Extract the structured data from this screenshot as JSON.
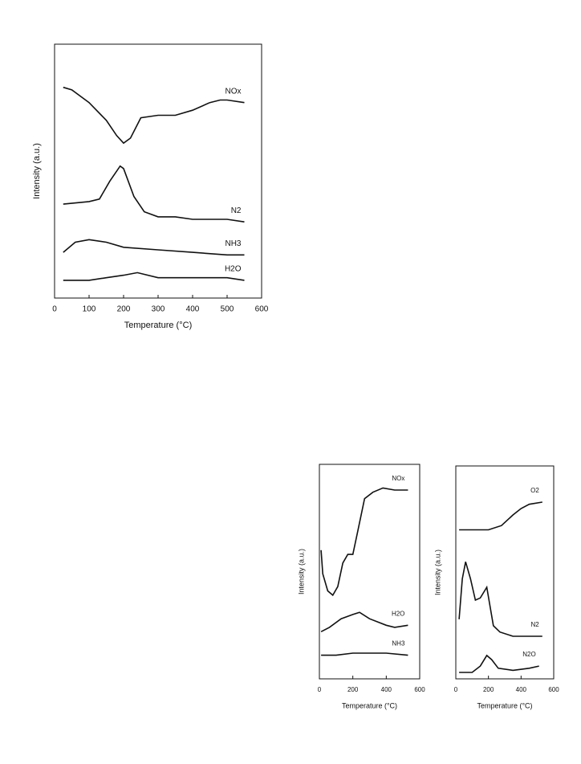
{
  "chart_data": [
    {
      "type": "line",
      "x_label": "Temperature (°C)",
      "y_label": "Intensity (a.u.)",
      "xlim": [
        0,
        600
      ],
      "xticks": [
        0,
        100,
        200,
        300,
        400,
        500,
        600
      ],
      "ylim": [
        0,
        100
      ],
      "series": [
        {
          "name": "NOx",
          "color": "#111111",
          "x": [
            25,
            50,
            100,
            150,
            180,
            200,
            220,
            250,
            300,
            350,
            400,
            450,
            480,
            500,
            550
          ],
          "values": [
            83,
            82,
            77,
            70,
            64,
            61,
            63,
            71,
            72,
            72,
            74,
            77,
            78,
            78,
            77
          ]
        },
        {
          "name": "N2",
          "color": "#111111",
          "x": [
            25,
            100,
            130,
            160,
            190,
            200,
            230,
            260,
            300,
            350,
            400,
            450,
            500,
            550
          ],
          "values": [
            37,
            38,
            39,
            46,
            52,
            51,
            40,
            34,
            32,
            32,
            31,
            31,
            31,
            30
          ]
        },
        {
          "name": "NH3",
          "color": "#111111",
          "x": [
            25,
            60,
            100,
            150,
            200,
            300,
            400,
            500,
            550
          ],
          "values": [
            18,
            22,
            23,
            22,
            20,
            19,
            18,
            17,
            17
          ]
        },
        {
          "name": "H2O",
          "color": "#111111",
          "x": [
            25,
            100,
            150,
            200,
            240,
            300,
            400,
            500,
            550
          ],
          "values": [
            7,
            7,
            8,
            9,
            10,
            8,
            8,
            8,
            7
          ]
        }
      ]
    },
    {
      "type": "line",
      "x_label": "Temperature (°C)",
      "y_label": "Intensity (a.u.)",
      "xlim": [
        0,
        600
      ],
      "xticks": [
        0,
        200,
        400,
        600
      ],
      "ylim": [
        0,
        100
      ],
      "series": [
        {
          "name": "NOx",
          "color": "#111111",
          "x": [
            10,
            20,
            50,
            80,
            110,
            140,
            170,
            200,
            230,
            270,
            320,
            380,
            450,
            530
          ],
          "values": [
            60,
            49,
            41,
            39,
            43,
            54,
            58,
            58,
            69,
            84,
            87,
            89,
            88,
            88
          ]
        },
        {
          "name": "H2O",
          "color": "#111111",
          "x": [
            10,
            60,
            130,
            200,
            240,
            300,
            400,
            450,
            530
          ],
          "values": [
            22,
            24,
            28,
            30,
            31,
            28,
            25,
            24,
            25
          ]
        },
        {
          "name": "NH3",
          "color": "#111111",
          "x": [
            10,
            100,
            200,
            300,
            400,
            530
          ],
          "values": [
            11,
            11,
            12,
            12,
            12,
            11
          ]
        }
      ]
    },
    {
      "type": "line",
      "x_label": "Temperature (°C)",
      "y_label": "Intensity (a.u.)",
      "xlim": [
        0,
        600
      ],
      "xticks": [
        0,
        200,
        400,
        600
      ],
      "ylim": [
        0,
        100
      ],
      "series": [
        {
          "name": "O2",
          "color": "#111111",
          "x": [
            20,
            100,
            200,
            280,
            350,
            400,
            450,
            530
          ],
          "values": [
            70,
            70,
            70,
            72,
            77,
            80,
            82,
            83
          ]
        },
        {
          "name": "N2",
          "color": "#111111",
          "x": [
            20,
            40,
            60,
            90,
            120,
            150,
            190,
            230,
            270,
            350,
            450,
            530
          ],
          "values": [
            28,
            47,
            55,
            47,
            37,
            38,
            43,
            25,
            22,
            20,
            20,
            20
          ]
        },
        {
          "name": "N2O",
          "color": "#111111",
          "x": [
            20,
            100,
            150,
            190,
            220,
            260,
            350,
            450,
            510
          ],
          "values": [
            3,
            3,
            6,
            11,
            9,
            5,
            4,
            5,
            6
          ]
        }
      ]
    }
  ]
}
